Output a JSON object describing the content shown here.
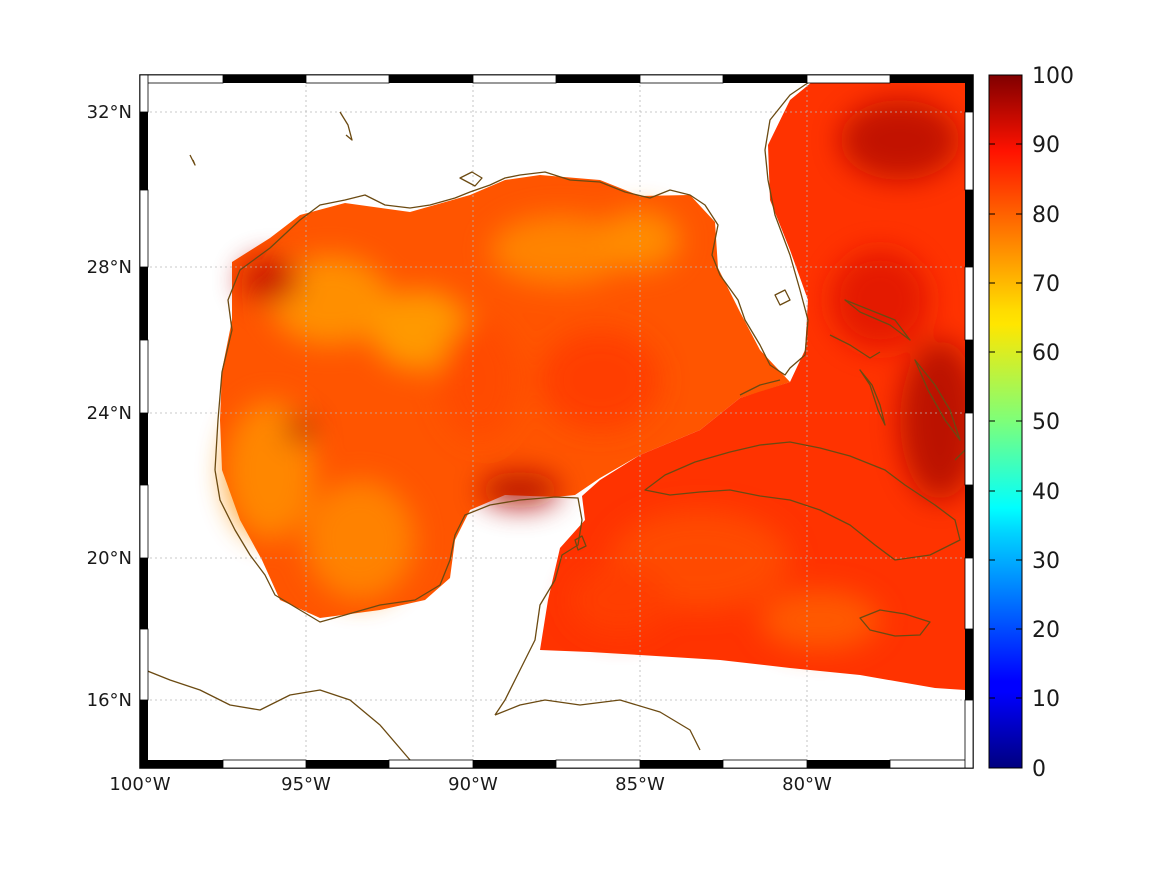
{
  "map": {
    "lon_labels": [
      "100°W",
      "95°W",
      "90°W",
      "85°W",
      "80°W"
    ],
    "lat_labels": [
      "32°N",
      "28°N",
      "24°N",
      "20°N",
      "16°N"
    ],
    "ocean_colors": [
      "#ff2a00",
      "#ff4500",
      "#ff6a00",
      "#ff8a00",
      "#ffa200",
      "#d41600",
      "#b80a00"
    ],
    "coast_color": "#6b4a12"
  },
  "colorbar": {
    "ticks": [
      "100",
      "90",
      "80",
      "70",
      "60",
      "50",
      "40",
      "30",
      "20",
      "10",
      "0"
    ],
    "min": 0,
    "max": 100,
    "colormap": "jet"
  }
}
